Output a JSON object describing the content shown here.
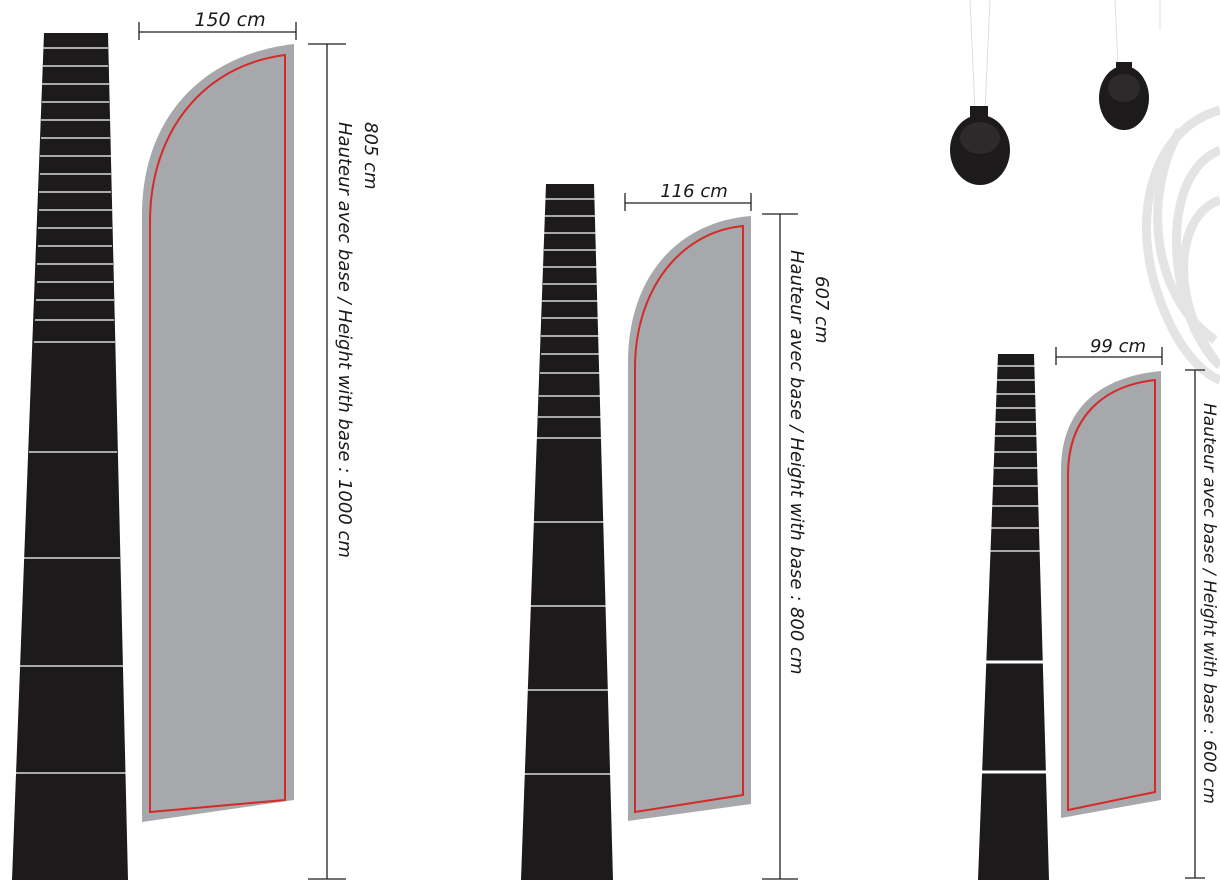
{
  "colors": {
    "pole": "#1d1a1b",
    "flag_fill": "#a7a8ab",
    "cut_line": "#d42a2a",
    "dimension_line": "#231f20",
    "background_sketch": "#e6e6e6"
  },
  "flags": [
    {
      "id": "large",
      "width_label": "150 cm",
      "flag_height_label": "805 cm",
      "total_height_label": "Hauteur avec base / Height with base : 1000 cm"
    },
    {
      "id": "medium",
      "width_label": "116 cm",
      "flag_height_label": "607 cm",
      "total_height_label": "Hauteur avec base / Height with base : 800 cm"
    },
    {
      "id": "small",
      "width_label": "99 cm",
      "flag_height_label": "",
      "total_height_label": "Hauteur avec base / Height with base : 600 cm"
    }
  ]
}
